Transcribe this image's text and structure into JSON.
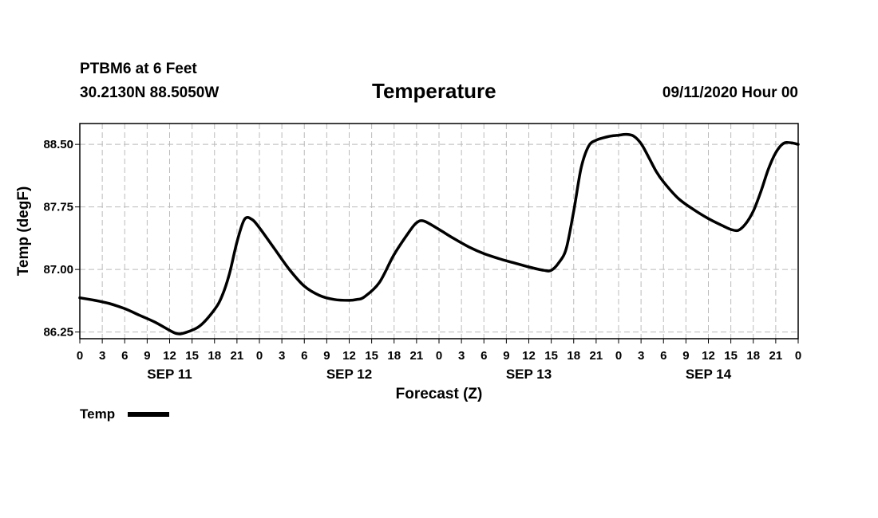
{
  "header": {
    "station": "PTBM6 at 6 Feet",
    "coords": "30.2130N 88.5050W",
    "title": "Temperature",
    "datetime": "09/11/2020 Hour 00"
  },
  "chart_data": {
    "type": "line",
    "title": "Temperature",
    "xlabel": "Forecast (Z)",
    "ylabel": "Temp (degF)",
    "xlim": [
      0,
      96
    ],
    "ylim": [
      86.17,
      88.75
    ],
    "yticks": [
      86.25,
      87.0,
      87.75,
      88.5
    ],
    "ytick_labels": [
      "86.25",
      "87.00",
      "87.75",
      "88.50"
    ],
    "xticks": [
      0,
      3,
      6,
      9,
      12,
      15,
      18,
      21,
      24,
      27,
      30,
      33,
      36,
      39,
      42,
      45,
      48,
      51,
      54,
      57,
      60,
      63,
      66,
      69,
      72,
      75,
      78,
      81,
      84,
      87,
      90,
      93,
      96
    ],
    "xtick_labels": [
      "0",
      "3",
      "6",
      "9",
      "12",
      "15",
      "18",
      "21",
      "0",
      "3",
      "6",
      "9",
      "12",
      "15",
      "18",
      "21",
      "0",
      "3",
      "6",
      "9",
      "12",
      "15",
      "18",
      "21",
      "0",
      "3",
      "6",
      "9",
      "12",
      "15",
      "18",
      "21",
      "0"
    ],
    "day_labels": [
      {
        "x": 12,
        "label": "SEP 11"
      },
      {
        "x": 36,
        "label": "SEP 12"
      },
      {
        "x": 60,
        "label": "SEP 13"
      },
      {
        "x": 84,
        "label": "SEP 14"
      }
    ],
    "grid": true,
    "legend": [
      {
        "name": "Temp",
        "position": "bottom-left"
      }
    ],
    "series": [
      {
        "name": "Temp",
        "color": "#000000",
        "x": [
          0,
          2,
          4,
          6,
          8,
          10,
          12,
          13,
          14,
          16,
          18,
          19,
          20,
          21,
          22,
          23,
          24,
          26,
          28,
          30,
          32,
          34,
          36,
          37,
          38,
          40,
          42,
          44,
          45,
          46,
          48,
          50,
          52,
          54,
          56,
          58,
          60,
          62,
          63,
          64,
          65,
          66,
          67,
          68,
          69,
          70,
          71,
          72,
          73,
          74,
          75,
          76,
          77,
          78,
          80,
          82,
          84,
          86,
          87,
          88,
          89,
          90,
          91,
          92,
          93,
          94,
          95,
          96
        ],
        "values": [
          86.66,
          86.63,
          86.59,
          86.53,
          86.45,
          86.37,
          86.27,
          86.23,
          86.24,
          86.32,
          86.52,
          86.68,
          86.95,
          87.33,
          87.6,
          87.6,
          87.5,
          87.25,
          87.0,
          86.8,
          86.69,
          86.64,
          86.63,
          86.64,
          86.67,
          86.84,
          87.18,
          87.45,
          87.56,
          87.58,
          87.48,
          87.37,
          87.27,
          87.19,
          87.13,
          87.08,
          87.03,
          86.99,
          86.99,
          87.08,
          87.25,
          87.7,
          88.22,
          88.48,
          88.55,
          88.58,
          88.6,
          88.61,
          88.62,
          88.6,
          88.51,
          88.35,
          88.18,
          88.05,
          87.85,
          87.72,
          87.61,
          87.52,
          87.48,
          87.47,
          87.55,
          87.7,
          87.93,
          88.2,
          88.4,
          88.51,
          88.52,
          88.5
        ]
      }
    ]
  }
}
